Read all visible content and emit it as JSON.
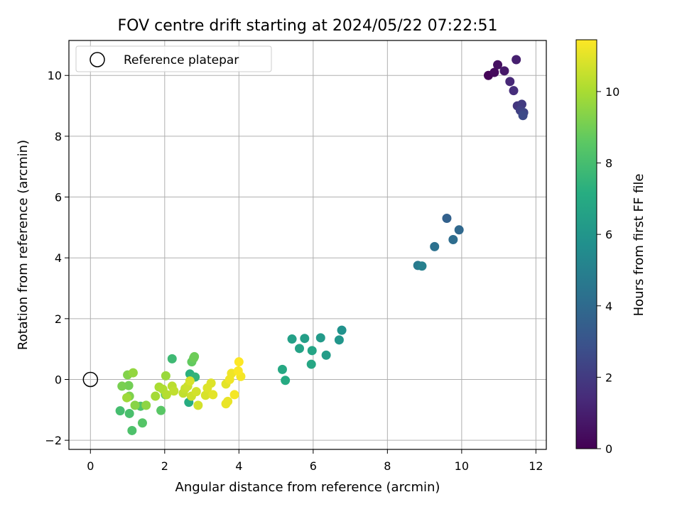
{
  "chart_data": {
    "type": "scatter",
    "title": "FOV centre drift starting at 2024/05/22 07:22:51",
    "xlabel": "Angular distance from reference (arcmin)",
    "ylabel": "Rotation from reference (arcmin)",
    "colorbar_label": "Hours from first FF file",
    "xlim": [
      -0.58,
      12.28
    ],
    "ylim": [
      -2.3,
      11.15
    ],
    "clim": [
      0,
      11.45
    ],
    "xticks": [
      "0",
      "2",
      "4",
      "6",
      "8",
      "10",
      "12"
    ],
    "yticks": [
      "−2",
      "0",
      "2",
      "4",
      "6",
      "8",
      "10"
    ],
    "colorbar_ticks": [
      "0",
      "2",
      "4",
      "6",
      "8",
      "10"
    ],
    "grid": true,
    "colormap": "viridis",
    "legend": {
      "placement": "upper-left",
      "entries": [
        "Reference platepar"
      ]
    },
    "reference_point": {
      "x": 0,
      "y": 0
    },
    "points": [
      {
        "x": 10.72,
        "y": 10.0,
        "t": 0.1
      },
      {
        "x": 10.88,
        "y": 10.1,
        "t": 0.3
      },
      {
        "x": 10.97,
        "y": 10.35,
        "t": 0.5
      },
      {
        "x": 11.15,
        "y": 10.15,
        "t": 0.8
      },
      {
        "x": 11.47,
        "y": 10.52,
        "t": 1.0
      },
      {
        "x": 11.3,
        "y": 9.8,
        "t": 1.3
      },
      {
        "x": 11.4,
        "y": 9.5,
        "t": 1.5
      },
      {
        "x": 11.5,
        "y": 9.0,
        "t": 1.8
      },
      {
        "x": 11.62,
        "y": 9.05,
        "t": 2.0
      },
      {
        "x": 11.58,
        "y": 8.85,
        "t": 2.2
      },
      {
        "x": 11.67,
        "y": 8.78,
        "t": 2.4
      },
      {
        "x": 11.65,
        "y": 8.68,
        "t": 2.6
      },
      {
        "x": 9.6,
        "y": 5.3,
        "t": 3.6
      },
      {
        "x": 9.93,
        "y": 4.92,
        "t": 3.9
      },
      {
        "x": 9.77,
        "y": 4.6,
        "t": 4.1
      },
      {
        "x": 9.27,
        "y": 4.37,
        "t": 4.3
      },
      {
        "x": 8.82,
        "y": 3.75,
        "t": 4.7
      },
      {
        "x": 8.93,
        "y": 3.73,
        "t": 5.0
      },
      {
        "x": 6.77,
        "y": 1.62,
        "t": 5.8
      },
      {
        "x": 6.7,
        "y": 1.3,
        "t": 6.0
      },
      {
        "x": 6.2,
        "y": 1.37,
        "t": 6.2
      },
      {
        "x": 6.35,
        "y": 0.8,
        "t": 6.3
      },
      {
        "x": 5.77,
        "y": 1.35,
        "t": 6.4
      },
      {
        "x": 5.43,
        "y": 1.33,
        "t": 6.5
      },
      {
        "x": 5.63,
        "y": 1.02,
        "t": 6.6
      },
      {
        "x": 5.97,
        "y": 0.95,
        "t": 6.7
      },
      {
        "x": 5.95,
        "y": 0.5,
        "t": 6.8
      },
      {
        "x": 5.17,
        "y": 0.33,
        "t": 6.9
      },
      {
        "x": 5.25,
        "y": -0.03,
        "t": 7.0
      },
      {
        "x": 2.65,
        "y": -0.75,
        "t": 7.1
      },
      {
        "x": 2.68,
        "y": 0.18,
        "t": 7.3
      },
      {
        "x": 2.82,
        "y": 0.08,
        "t": 7.5
      },
      {
        "x": 2.2,
        "y": 0.68,
        "t": 7.8
      },
      {
        "x": 0.8,
        "y": -1.03,
        "t": 8.0
      },
      {
        "x": 1.05,
        "y": -1.12,
        "t": 8.1
      },
      {
        "x": 1.12,
        "y": -1.68,
        "t": 8.2
      },
      {
        "x": 1.35,
        "y": -0.88,
        "t": 8.3
      },
      {
        "x": 1.4,
        "y": -1.43,
        "t": 8.4
      },
      {
        "x": 1.9,
        "y": -1.02,
        "t": 8.5
      },
      {
        "x": 2.02,
        "y": -0.5,
        "t": 8.6
      },
      {
        "x": 2.73,
        "y": 0.58,
        "t": 8.7
      },
      {
        "x": 2.78,
        "y": 0.7,
        "t": 8.8
      },
      {
        "x": 2.8,
        "y": 0.75,
        "t": 8.9
      },
      {
        "x": 1.03,
        "y": -0.2,
        "t": 9.0
      },
      {
        "x": 0.85,
        "y": -0.22,
        "t": 9.1
      },
      {
        "x": 1.05,
        "y": -0.55,
        "t": 9.2
      },
      {
        "x": 1.0,
        "y": 0.15,
        "t": 9.3
      },
      {
        "x": 1.2,
        "y": -0.85,
        "t": 9.4
      },
      {
        "x": 1.5,
        "y": -0.85,
        "t": 9.5
      },
      {
        "x": 1.15,
        "y": 0.22,
        "t": 9.6
      },
      {
        "x": 2.03,
        "y": 0.12,
        "t": 9.7
      },
      {
        "x": 0.98,
        "y": -0.6,
        "t": 9.8
      },
      {
        "x": 1.75,
        "y": -0.55,
        "t": 9.9
      },
      {
        "x": 1.85,
        "y": -0.25,
        "t": 10.0
      },
      {
        "x": 1.95,
        "y": -0.32,
        "t": 10.1
      },
      {
        "x": 2.05,
        "y": -0.5,
        "t": 10.2
      },
      {
        "x": 2.2,
        "y": -0.22,
        "t": 10.3
      },
      {
        "x": 2.25,
        "y": -0.38,
        "t": 10.4
      },
      {
        "x": 2.5,
        "y": -0.45,
        "t": 10.4
      },
      {
        "x": 2.55,
        "y": -0.3,
        "t": 10.5
      },
      {
        "x": 2.62,
        "y": -0.22,
        "t": 10.6
      },
      {
        "x": 2.72,
        "y": -0.55,
        "t": 10.6
      },
      {
        "x": 2.85,
        "y": -0.4,
        "t": 10.7
      },
      {
        "x": 2.9,
        "y": -0.85,
        "t": 10.7
      },
      {
        "x": 2.68,
        "y": -0.05,
        "t": 10.8
      },
      {
        "x": 3.1,
        "y": -0.52,
        "t": 10.8
      },
      {
        "x": 3.15,
        "y": -0.28,
        "t": 10.9
      },
      {
        "x": 3.25,
        "y": -0.12,
        "t": 10.9
      },
      {
        "x": 3.3,
        "y": -0.5,
        "t": 11.0
      },
      {
        "x": 3.65,
        "y": -0.15,
        "t": 11.0
      },
      {
        "x": 3.7,
        "y": -0.72,
        "t": 11.1
      },
      {
        "x": 3.65,
        "y": -0.8,
        "t": 11.1
      },
      {
        "x": 3.75,
        "y": 0.0,
        "t": 11.2
      },
      {
        "x": 3.8,
        "y": 0.2,
        "t": 11.2
      },
      {
        "x": 3.88,
        "y": -0.5,
        "t": 11.3
      },
      {
        "x": 4.05,
        "y": 0.1,
        "t": 11.3
      },
      {
        "x": 3.98,
        "y": 0.28,
        "t": 11.4
      },
      {
        "x": 4.0,
        "y": 0.58,
        "t": 11.45
      }
    ]
  }
}
